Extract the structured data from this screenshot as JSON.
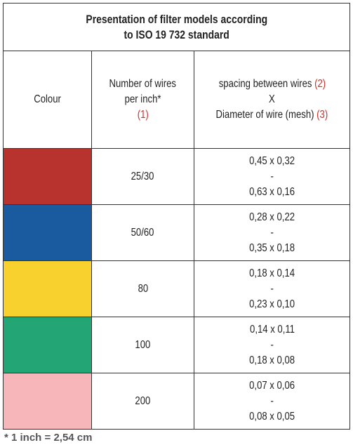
{
  "title": [
    "Presentation of filter models according",
    "to ISO 19 732 standard"
  ],
  "header": {
    "colour": "Colour",
    "wires": {
      "line1": "Number of wires",
      "line2": "per inch*",
      "ref": "(1)"
    },
    "spacing": {
      "line1": "spacing between wires",
      "ref1": "(2)",
      "line2": "X",
      "line3": "Diameter of wire (mesh)",
      "ref3": "(3)"
    }
  },
  "rows": [
    {
      "color": "#b8322e",
      "wires": "25/30",
      "spacing": [
        "0,45 x 0,32",
        "-",
        "0,63 x 0,16"
      ]
    },
    {
      "color": "#1a5ba0",
      "wires": "50/60",
      "spacing": [
        "0,28 x 0,22",
        "-",
        "0,35 x 0,18"
      ]
    },
    {
      "color": "#f8d12e",
      "wires": "80",
      "spacing": [
        "0,18 x 0,14",
        "-",
        "0,23 x 0,10"
      ]
    },
    {
      "color": "#23a575",
      "wires": "100",
      "spacing": [
        "0,14 x 0,11",
        "-",
        "0,18 x 0,08"
      ]
    },
    {
      "color": "#f6b6ba",
      "wires": "200",
      "spacing": [
        "0,07 x 0,06",
        "-",
        "0,08 x 0,05"
      ]
    }
  ],
  "footnote": "* 1 inch = 2,54 cm"
}
